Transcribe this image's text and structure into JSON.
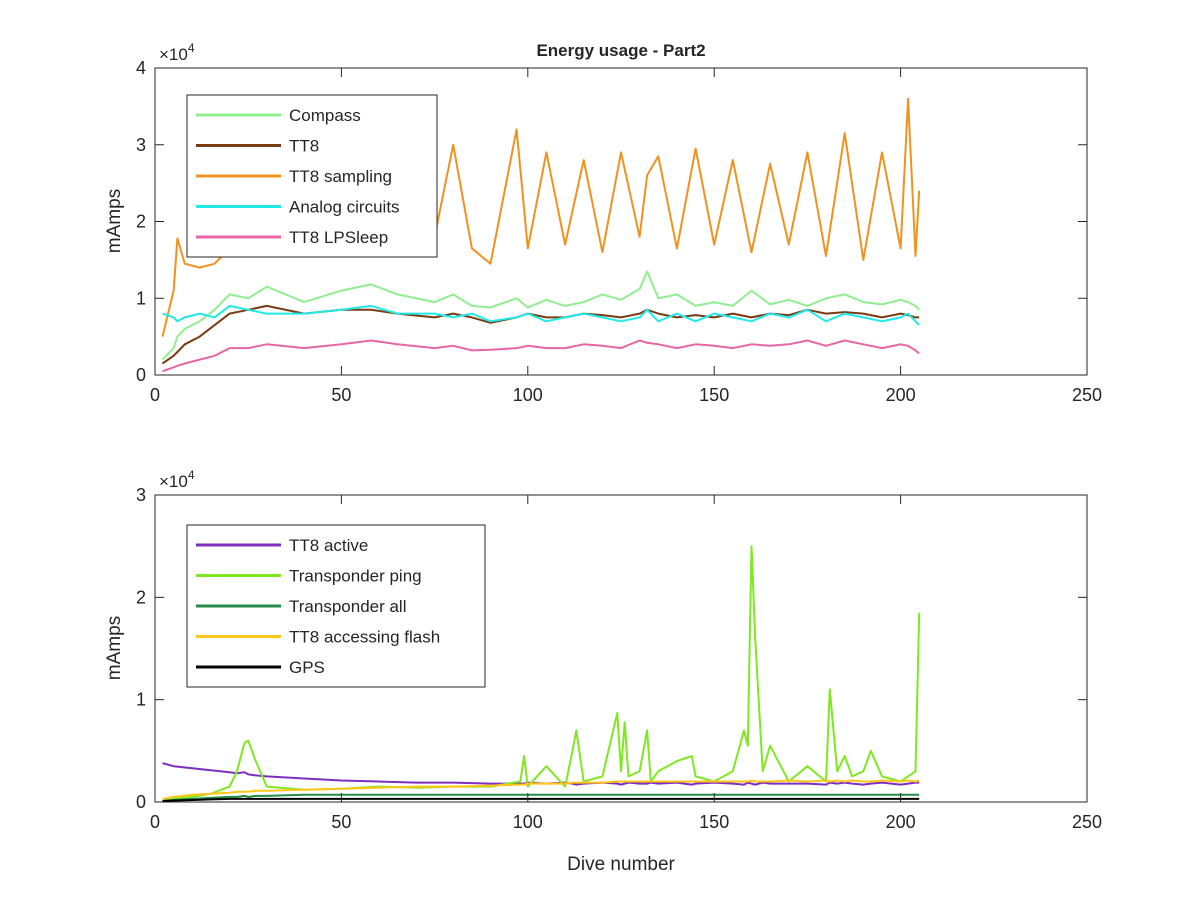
{
  "chart_data": [
    {
      "type": "line",
      "title": "Energy usage - Part2",
      "xlabel": "",
      "ylabel": "mAmps",
      "xlim": [
        0,
        250
      ],
      "ylim": [
        0,
        40000
      ],
      "y_multiplier_label": "×10",
      "y_multiplier_exponent": "4",
      "xticks": [
        0,
        50,
        100,
        150,
        200,
        250
      ],
      "xtick_labels": [
        "0",
        "50",
        "100",
        "150",
        "200",
        "250"
      ],
      "yticks": [
        0,
        10000,
        20000,
        30000,
        40000
      ],
      "ytick_labels": [
        "0",
        "1",
        "2",
        "3",
        "4"
      ],
      "grid": false,
      "legend_position": "top-left",
      "x": [
        2,
        5,
        6,
        8,
        12,
        16,
        20,
        25,
        30,
        40,
        50,
        58,
        65,
        75,
        80,
        85,
        90,
        97,
        100,
        105,
        110,
        115,
        120,
        125,
        130,
        132,
        135,
        140,
        145,
        150,
        155,
        160,
        165,
        170,
        175,
        180,
        185,
        190,
        195,
        200,
        202,
        204,
        205
      ],
      "series": [
        {
          "name": "Compass",
          "color": "#90EE90",
          "values": [
            2000,
            3500,
            5000,
            6000,
            7000,
            8500,
            10500,
            10000,
            11500,
            9500,
            11000,
            11800,
            10500,
            9500,
            10500,
            9000,
            8800,
            10000,
            8800,
            9800,
            9000,
            9500,
            10500,
            9800,
            11200,
            13500,
            10000,
            10500,
            9000,
            9500,
            9000,
            11000,
            9200,
            9800,
            9000,
            10000,
            10500,
            9500,
            9200,
            9800,
            9500,
            9000,
            8500
          ]
        },
        {
          "name": "TT8",
          "color": "#7A3B12",
          "values": [
            1500,
            2500,
            3000,
            4000,
            5000,
            6500,
            8000,
            8500,
            9000,
            8000,
            8500,
            8500,
            8000,
            7500,
            8000,
            7500,
            6800,
            7500,
            8000,
            7500,
            7500,
            8000,
            7800,
            7500,
            8000,
            8500,
            8000,
            7500,
            7800,
            7500,
            8000,
            7500,
            8000,
            7800,
            8500,
            8000,
            8200,
            8000,
            7500,
            8000,
            7800,
            7500,
            7500
          ]
        },
        {
          "name": "TT8 sampling",
          "color": "#F0921E",
          "values": [
            5000,
            11000,
            17800,
            14500,
            14000,
            14500,
            16500,
            17500,
            28000,
            21000,
            24000,
            27500,
            23500,
            18000,
            30000,
            16500,
            14500,
            32000,
            16500,
            29000,
            17000,
            28000,
            16000,
            29000,
            18000,
            26000,
            28500,
            16500,
            29500,
            17000,
            28000,
            16000,
            27500,
            17000,
            29000,
            15500,
            31500,
            15000,
            29000,
            16500,
            36000,
            15500,
            24000
          ]
        },
        {
          "name": "Analog circuits",
          "color": "#22E8E8",
          "values": [
            8000,
            7500,
            7000,
            7500,
            8000,
            7500,
            9000,
            8500,
            8000,
            8000,
            8500,
            9000,
            8000,
            8000,
            7500,
            8000,
            7000,
            7500,
            8000,
            7000,
            7500,
            8000,
            7500,
            7000,
            7500,
            8500,
            7000,
            8000,
            7000,
            8000,
            7500,
            7000,
            8000,
            7500,
            8500,
            7000,
            8000,
            7500,
            7000,
            7500,
            8000,
            7000,
            6500
          ]
        },
        {
          "name": "TT8 LPSleep",
          "color": "#E766A6",
          "values": [
            500,
            1000,
            1200,
            1500,
            2000,
            2500,
            3500,
            3500,
            4000,
            3500,
            4000,
            4500,
            4000,
            3500,
            3800,
            3200,
            3300,
            3500,
            3800,
            3500,
            3500,
            4000,
            3800,
            3500,
            4500,
            4200,
            4000,
            3500,
            4000,
            3800,
            3500,
            4000,
            3800,
            4000,
            4500,
            3800,
            4500,
            4000,
            3500,
            4000,
            3800,
            3200,
            2800
          ]
        }
      ]
    },
    {
      "type": "line",
      "title": "",
      "xlabel": "Dive number",
      "ylabel": "mAmps",
      "xlim": [
        0,
        250
      ],
      "ylim": [
        0,
        30000
      ],
      "y_multiplier_label": "×10",
      "y_multiplier_exponent": "4",
      "xticks": [
        0,
        50,
        100,
        150,
        200,
        250
      ],
      "xtick_labels": [
        "0",
        "50",
        "100",
        "150",
        "200",
        "250"
      ],
      "yticks": [
        0,
        10000,
        20000,
        30000
      ],
      "ytick_labels": [
        "0",
        "1",
        "2",
        "3"
      ],
      "grid": false,
      "legend_position": "top-left",
      "x": [
        2,
        5,
        10,
        15,
        20,
        22,
        24,
        25,
        27,
        30,
        40,
        50,
        60,
        70,
        80,
        90,
        98,
        99,
        100,
        105,
        110,
        112,
        113,
        115,
        120,
        124,
        125,
        126,
        127,
        130,
        132,
        133,
        135,
        140,
        144,
        145,
        150,
        155,
        158,
        159,
        160,
        161,
        163,
        165,
        170,
        175,
        180,
        181,
        183,
        185,
        187,
        190,
        192,
        195,
        200,
        202,
        204,
        205
      ],
      "series": [
        {
          "name": "TT8 active",
          "color": "#7E2FBF",
          "values": [
            3800,
            3500,
            3300,
            3100,
            2900,
            2800,
            2900,
            2700,
            2600,
            2500,
            2300,
            2100,
            2000,
            1900,
            1900,
            1800,
            1800,
            1800,
            1900,
            1800,
            1900,
            1800,
            1700,
            1800,
            1900,
            1800,
            1700,
            1800,
            1900,
            1800,
            1800,
            1900,
            1800,
            1900,
            1700,
            1800,
            1900,
            1800,
            1700,
            1900,
            1800,
            1700,
            1900,
            1800,
            1800,
            1800,
            1700,
            1900,
            1800,
            1900,
            1800,
            1700,
            1800,
            1900,
            1700,
            1800,
            1900,
            1900
          ]
        },
        {
          "name": "Transponder ping",
          "color": "#7FE820",
          "values": [
            100,
            300,
            500,
            800,
            1500,
            3000,
            5800,
            6000,
            4000,
            1500,
            1200,
            1300,
            1500,
            1400,
            1500,
            1500,
            2000,
            4500,
            1500,
            3500,
            1500,
            5000,
            7000,
            2000,
            2500,
            8700,
            3000,
            7800,
            2500,
            3000,
            7000,
            2000,
            3000,
            4000,
            4500,
            2500,
            2000,
            3000,
            7000,
            5500,
            25000,
            16000,
            3000,
            5500,
            2000,
            3500,
            2000,
            11000,
            3000,
            4500,
            2500,
            3000,
            5000,
            2500,
            2000,
            2500,
            3000,
            18500
          ]
        },
        {
          "name": "Transponder all",
          "color": "#238B45",
          "values": [
            100,
            200,
            300,
            400,
            500,
            500,
            600,
            500,
            600,
            600,
            700,
            700,
            700,
            700,
            700,
            700,
            700,
            700,
            700,
            700,
            700,
            700,
            700,
            700,
            700,
            700,
            700,
            700,
            700,
            700,
            700,
            700,
            700,
            700,
            700,
            700,
            700,
            700,
            700,
            700,
            700,
            700,
            700,
            700,
            700,
            700,
            700,
            700,
            700,
            700,
            700,
            700,
            700,
            700,
            700,
            700,
            700,
            700
          ]
        },
        {
          "name": "TT8 accessing flash",
          "color": "#FFC61A",
          "values": [
            300,
            500,
            700,
            800,
            900,
            1000,
            1000,
            1000,
            1100,
            1100,
            1200,
            1300,
            1400,
            1500,
            1500,
            1600,
            1700,
            1700,
            1800,
            1800,
            1800,
            1900,
            1900,
            1900,
            1900,
            2000,
            2000,
            2000,
            2000,
            2000,
            2000,
            2000,
            2000,
            2000,
            2000,
            2000,
            2000,
            2000,
            2000,
            2000,
            2100,
            2000,
            2000,
            2000,
            2100,
            2000,
            2100,
            2000,
            2100,
            2000,
            2100,
            2000,
            2000,
            2100,
            2000,
            2100,
            2000,
            2100
          ]
        },
        {
          "name": "GPS",
          "color": "#000000",
          "values": [
            100,
            150,
            200,
            250,
            300,
            300,
            300,
            300,
            300,
            300,
            300,
            300,
            300,
            300,
            300,
            300,
            300,
            300,
            300,
            300,
            300,
            300,
            300,
            300,
            300,
            300,
            300,
            300,
            300,
            300,
            300,
            300,
            300,
            300,
            300,
            300,
            300,
            300,
            300,
            300,
            300,
            300,
            300,
            300,
            300,
            300,
            300,
            300,
            300,
            300,
            300,
            300,
            300,
            300,
            300,
            300,
            300,
            300
          ]
        }
      ]
    }
  ]
}
